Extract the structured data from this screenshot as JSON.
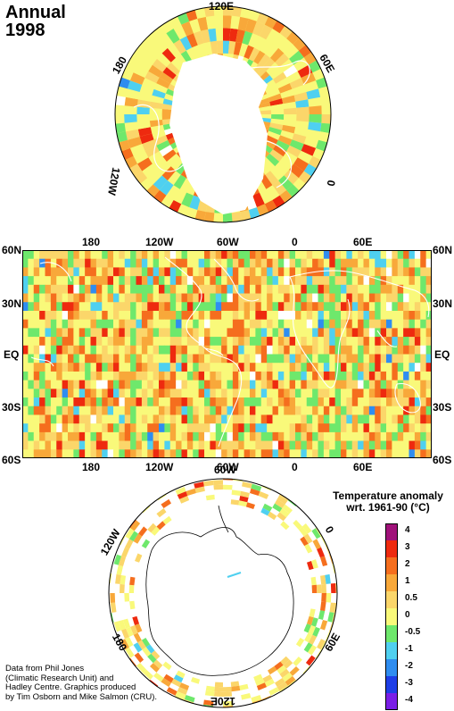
{
  "title": {
    "line1": "Annual",
    "line2": "1998"
  },
  "north_polar": {
    "labels": {
      "lon_120e": "120E",
      "lon_60e": "60E",
      "lon_0": "0",
      "lon_120w": "120W",
      "lon_180": "180"
    }
  },
  "global_map": {
    "top_lon_labels": [
      "180",
      "120W",
      "60W",
      "0",
      "60E"
    ],
    "bottom_lon_labels": [
      "180",
      "120W",
      "60W",
      "0",
      "60E"
    ],
    "lat_labels_left": [
      "60N",
      "30N",
      "EQ",
      "30S",
      "60S"
    ],
    "lat_labels_right": [
      "60N",
      "30N",
      "EQ",
      "30S",
      "60S"
    ]
  },
  "south_polar": {
    "labels": {
      "lon_60w": "60W",
      "lon_0": "0",
      "lon_120w": "120W",
      "lon_180": "180",
      "lon_60e": "60E",
      "lon_120e": "120E"
    }
  },
  "legend": {
    "title_line1": "Temperature anomaly",
    "title_line2": "wrt. 1961-90  (°C)",
    "entries": [
      {
        "label": "4",
        "color": "#a0127a"
      },
      {
        "label": "3",
        "color": "#ee2a0f"
      },
      {
        "label": "2",
        "color": "#f56e1e"
      },
      {
        "label": "1",
        "color": "#f8a83a"
      },
      {
        "label": "0.5",
        "color": "#fbd66a"
      },
      {
        "label": "0",
        "color": "#f9f97a"
      },
      {
        "label": "-0.5",
        "color": "#6ee86c"
      },
      {
        "label": "-1",
        "color": "#4fd0f0"
      },
      {
        "label": "-2",
        "color": "#2f8df0"
      },
      {
        "label": "-3",
        "color": "#1e3ee6"
      },
      {
        "label": "-4",
        "color": "#7a1ee6"
      }
    ]
  },
  "credits": {
    "line1": "Data from Phil Jones",
    "line2": "(Climatic Research Unit) and",
    "line3": "Hadley Centre.  Graphics produced",
    "line4": "by Tim Osborn and Mike Salmon (CRU)."
  }
}
